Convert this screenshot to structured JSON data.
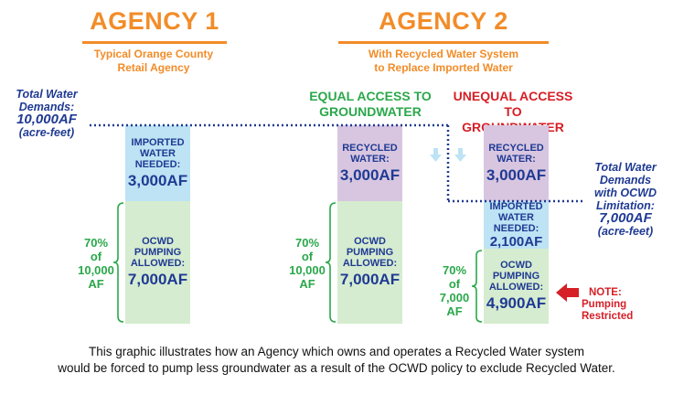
{
  "agency1": {
    "title": "AGENCY 1",
    "subtitle_line1": "Typical Orange County",
    "subtitle_line2": "Retail Agency",
    "imported": {
      "label1": "IMPORTED",
      "label2": "WATER",
      "label3": "NEEDED:",
      "value": "3,000AF"
    },
    "ocwd": {
      "label1": "OCWD",
      "label2": "PUMPING",
      "label3": "ALLOWED:",
      "value": "7,000AF"
    },
    "pct": {
      "line1": "70%",
      "line2": "of",
      "line3": "10,000",
      "line4": "AF"
    }
  },
  "agency2": {
    "title": "AGENCY 2",
    "subtitle_line1": "With Recycled Water System",
    "subtitle_line2": "to Replace Imported Water",
    "equal": {
      "heading1": "EQUAL ACCESS TO",
      "heading2": "GROUNDWATER",
      "recycled": {
        "label1": "RECYCLED",
        "label2": "WATER:",
        "value": "3,000AF"
      },
      "ocwd": {
        "label1": "OCWD",
        "label2": "PUMPING",
        "label3": "ALLOWED:",
        "value": "7,000AF"
      },
      "pct": {
        "line1": "70%",
        "line2": "of",
        "line3": "10,000",
        "line4": "AF"
      }
    },
    "unequal": {
      "heading1": "UNEQUAL ACCESS TO",
      "heading2": "GROUNDWATER",
      "recycled": {
        "label1": "RECYCLED",
        "label2": "WATER:",
        "value": "3,000AF"
      },
      "imported": {
        "label1": "IMPORTED",
        "label2": "WATER",
        "label3": "NEEDED:",
        "value": "2,100AF"
      },
      "ocwd": {
        "label1": "OCWD",
        "label2": "PUMPING",
        "label3": "ALLOWED:",
        "value": "4,900AF"
      },
      "pct": {
        "line1": "70%",
        "line2": "of",
        "line3": "7,000",
        "line4": "AF"
      }
    }
  },
  "left_label": {
    "line1": "Total Water",
    "line2": "Demands:",
    "line3": "10,000AF",
    "line4": "(acre-feet)"
  },
  "right_label": {
    "line1": "Total Water",
    "line2": "Demands",
    "line3": "with OCWD",
    "line4": "Limitation:",
    "line5": "7,000AF",
    "line6": "(acre-feet)"
  },
  "note": {
    "line1": "NOTE:",
    "line2": "Pumping",
    "line3": "Restricted"
  },
  "caption": {
    "line1": "This graphic illustrates how an Agency which owns and operates a Recycled Water system",
    "line2": "would be forced to pump less groundwater as a result of the OCWD policy to exclude Recycled Water."
  },
  "colors": {
    "orange": "#f28c28",
    "navy": "#1f3a93",
    "green": "#2aa84a",
    "red": "#d61f26"
  }
}
